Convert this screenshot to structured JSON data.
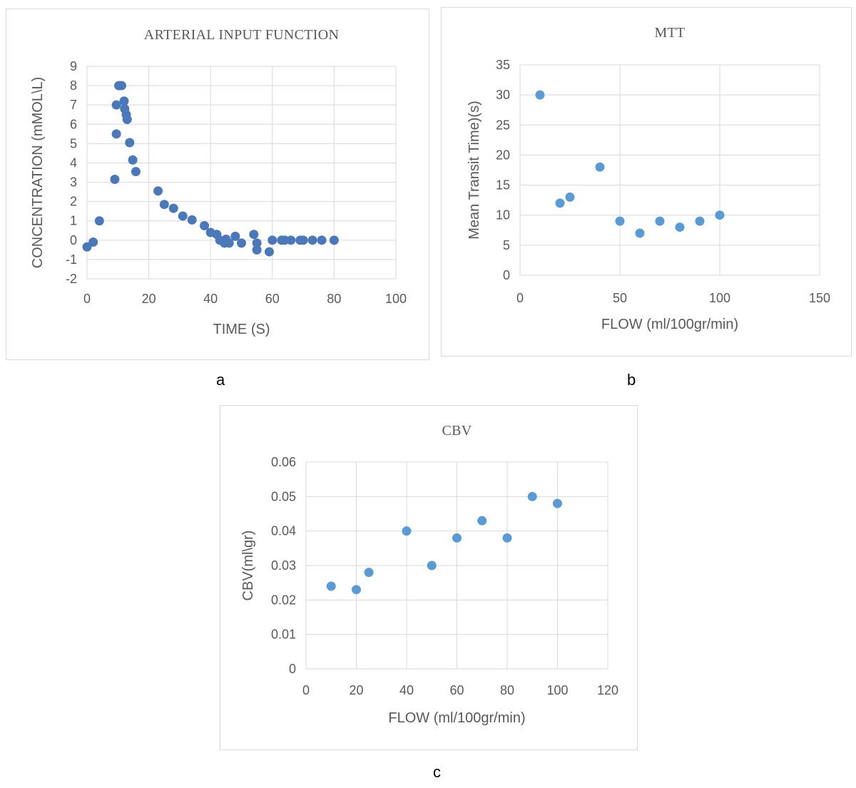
{
  "labels": {
    "a": "a",
    "b": "b",
    "c": "c"
  },
  "chart_data": [
    {
      "id": "a",
      "type": "scatter",
      "title": "ARTERIAL INPUT FUNCTION",
      "xlabel": "TIME (S)",
      "ylabel": "CONCENTRATION (mMOL\\L)",
      "xlim": [
        0,
        100
      ],
      "ylim": [
        -2,
        9
      ],
      "xticks": [
        "0",
        "20",
        "40",
        "60",
        "80",
        "100"
      ],
      "yticks": [
        "-2",
        "-1",
        "0",
        "1",
        "2",
        "3",
        "4",
        "5",
        "6",
        "7",
        "8",
        "9"
      ],
      "grid": true,
      "color": "#4a78b8",
      "series": [
        {
          "x": [
            0,
            2,
            4,
            9,
            9.5,
            9.5,
            10.3,
            11.2,
            12,
            12.2,
            12.7,
            13,
            13.8,
            14.8,
            15.8,
            23,
            25,
            28,
            31,
            34,
            38,
            40,
            42,
            43,
            44.5,
            45,
            46,
            48,
            50,
            54,
            55,
            55,
            59,
            60,
            63,
            64,
            66,
            69,
            70,
            73,
            76,
            80
          ],
          "y": [
            -0.35,
            -0.1,
            1.0,
            3.15,
            5.5,
            7.0,
            8.0,
            8.0,
            7.2,
            6.8,
            6.5,
            6.25,
            5.05,
            4.15,
            3.55,
            2.55,
            1.85,
            1.65,
            1.25,
            1.05,
            0.75,
            0.4,
            0.3,
            0.0,
            -0.15,
            0.05,
            -0.15,
            0.2,
            -0.15,
            0.3,
            -0.15,
            -0.5,
            -0.6,
            0.0,
            0.0,
            0.0,
            0.0,
            0.0,
            0.0,
            0.0,
            0.0,
            0.0
          ]
        }
      ]
    },
    {
      "id": "b",
      "type": "scatter",
      "title": "MTT",
      "xlabel": "FLOW (ml/100gr/min)",
      "ylabel": "Mean Transit Time)(s)",
      "xlim": [
        0,
        150
      ],
      "ylim": [
        0,
        35
      ],
      "xticks": [
        "0",
        "50",
        "100",
        "150"
      ],
      "yticks": [
        "0",
        "5",
        "10",
        "15",
        "20",
        "25",
        "30",
        "35"
      ],
      "grid": true,
      "color": "#5b9bd5",
      "series": [
        {
          "x": [
            10,
            20,
            25,
            40,
            50,
            60,
            70,
            80,
            90,
            100
          ],
          "y": [
            30,
            12,
            13,
            18,
            9,
            7,
            9,
            8,
            9,
            10
          ]
        }
      ]
    },
    {
      "id": "c",
      "type": "scatter",
      "title": "CBV",
      "xlabel": "FLOW (ml/100gr/min)",
      "ylabel": "CBV(ml\\gr)",
      "xlim": [
        0,
        120
      ],
      "ylim": [
        0,
        0.06
      ],
      "xticks": [
        "0",
        "20",
        "40",
        "60",
        "80",
        "100",
        "120"
      ],
      "yticks": [
        "0",
        "0.01",
        "0.02",
        "0.03",
        "0.04",
        "0.05",
        "0.06"
      ],
      "grid": true,
      "color": "#5b9bd5",
      "series": [
        {
          "x": [
            10,
            20,
            25,
            40,
            50,
            60,
            70,
            80,
            90,
            100
          ],
          "y": [
            0.024,
            0.023,
            0.028,
            0.04,
            0.03,
            0.038,
            0.043,
            0.038,
            0.05,
            0.048
          ]
        }
      ]
    }
  ]
}
